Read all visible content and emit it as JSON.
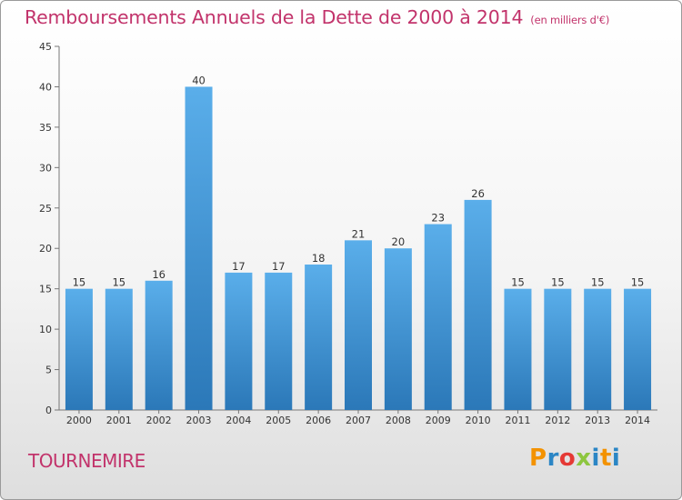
{
  "title": "Remboursements Annuels de la Dette de 2000 à 2014",
  "unit": "(en milliers d'€)",
  "commune": "TOURNEMIRE",
  "logo": {
    "letters": [
      "P",
      "r",
      "o",
      "x",
      "i",
      "t",
      "i"
    ],
    "colors": [
      "#f39200",
      "#2b86c5",
      "#e53935",
      "#8dc63f",
      "#2b86c5",
      "#f39200",
      "#2b86c5"
    ]
  },
  "colors": {
    "title": "#c2336b",
    "bar_top": "#5aaeea",
    "bar_bottom": "#2b78b8"
  },
  "chart_data": {
    "type": "bar",
    "categories": [
      "2000",
      "2001",
      "2002",
      "2003",
      "2004",
      "2005",
      "2006",
      "2007",
      "2008",
      "2009",
      "2010",
      "2011",
      "2012",
      "2013",
      "2014"
    ],
    "values": [
      15,
      15,
      16,
      40,
      17,
      17,
      18,
      21,
      20,
      23,
      26,
      15,
      15,
      15,
      15
    ],
    "ylim": [
      0,
      45
    ],
    "yticks": [
      0,
      5,
      10,
      15,
      20,
      25,
      30,
      35,
      40,
      45
    ],
    "grid": false,
    "data_labels": true
  }
}
